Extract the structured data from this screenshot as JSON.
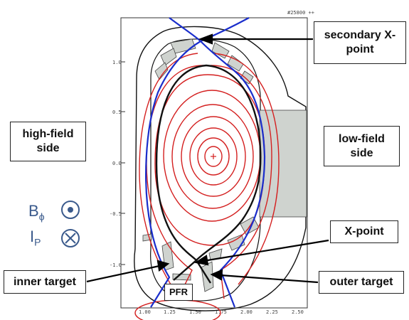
{
  "labels": {
    "secondary_x_point": "secondary X-\npoint",
    "high_field_side": "high-field\nside",
    "low_field_side": "low-field\nside",
    "x_point": "X-point",
    "inner_target": "inner target",
    "outer_target": "outer target",
    "pfr": "PFR",
    "shot_id": "#25800 ++"
  },
  "legend": {
    "toroidal_field": {
      "symbol": "B",
      "subscript": "ϕ",
      "icon": "circle-dot-icon"
    },
    "plasma_current": {
      "symbol": "I",
      "subscript": "P",
      "icon": "circle-cross-icon"
    }
  },
  "axes": {
    "y_ticks": [
      "1.0",
      "0.5",
      "0.0",
      "-0.5",
      "-1.0"
    ],
    "x_ticks": [
      "1.00",
      "1.25",
      "1.50",
      "1.75",
      "2.00",
      "2.25",
      "2.50"
    ]
  },
  "colors": {
    "flux_surface": "#d42020",
    "separatrix": "#1a2ecc",
    "vessel": "#111111",
    "tiles": "#cfd3cf",
    "legend": "#3a5a8c"
  }
}
